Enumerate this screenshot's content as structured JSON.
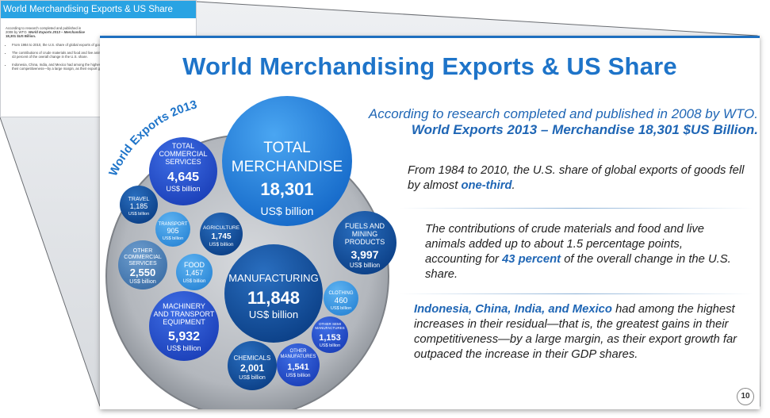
{
  "thumbnail": {
    "title": "World Merchandising Exports & US Share",
    "intro_line1": "According to research completed and published in",
    "intro_line2_a": "2008 by WTO. ",
    "intro_line2_b": "World Exports 2013 – Merchandise",
    "intro_line3": "18,301 $US Billion.",
    "bullets": [
      "From 1984 to 2010, the U.S. share of global exports of goods fell by almost one-third.",
      "The contributions of crude materials and food and live animals added up to about 1.5 percentage points, accounting for 43 percent of the overall change in the U.S. share.",
      "Indonesia, China, India, and Mexico had among the highest increases in their residual—that is, the greatest gains in their competitiveness—by a large margin, as their export growth far outpaced the increase in their GDP shares."
    ]
  },
  "slide": {
    "title": "World Merchandising Exports & US Share",
    "intro_line1": "According to research completed and published in 2008 by WTO.",
    "intro_line2": "World Exports 2013 – Merchandise  18,301 $US Billion.",
    "para1_a": "From 1984 to 2010, the U.S. share of global exports of goods fell by almost ",
    "para1_b": "one-third",
    "para1_c": ".",
    "para2_a": "The contributions of crude materials and food and live animals added up to about 1.5 percentage points, accounting for ",
    "para2_b": "43 percent",
    "para2_c": " of the overall change in the U.S. share.",
    "para3_a": "Indonesia, China, India, and Mexico",
    "para3_b": " had among the highest increases in their residual—that is, the greatest gains in their competitiveness—by a large margin, as their export growth far outpaced the increase in their GDP shares.",
    "page_number": "10"
  },
  "chart_data": {
    "type": "bubble",
    "title": "World Exports 2013",
    "unit": "US$ billion",
    "bubbles": [
      {
        "label": "TOTAL MERCHANDISE",
        "value": 18301,
        "display": "18,301"
      },
      {
        "label": "MANUFACTURING",
        "value": 11848,
        "display": "11,848"
      },
      {
        "label": "MACHINERY AND TRANSPORT EQUIPMENT",
        "value": 5932,
        "display": "5,932"
      },
      {
        "label": "TOTAL COMMERCIAL SERVICES",
        "value": 4645,
        "display": "4,645"
      },
      {
        "label": "FUELS AND MINING PRODUCTS",
        "value": 3997,
        "display": "3,997"
      },
      {
        "label": "OTHER COMMERCIAL SERVICES",
        "value": 2550,
        "display": "2,550"
      },
      {
        "label": "CHEMICALS",
        "value": 2001,
        "display": "2,001"
      },
      {
        "label": "AGRICULTURE",
        "value": 1745,
        "display": "1,745"
      },
      {
        "label": "OTHER MANUFATURES",
        "value": 1541,
        "display": "1,541"
      },
      {
        "label": "FOOD",
        "value": 1457,
        "display": "1,457"
      },
      {
        "label": "TRAVEL",
        "value": 1185,
        "display": "1,185"
      },
      {
        "label": "OTHER SEMI MANUFACTURES",
        "value": 1153,
        "display": "1,153"
      },
      {
        "label": "TRANSPORT",
        "value": 905,
        "display": "905"
      },
      {
        "label": "CLOTHING",
        "value": 460,
        "display": "460"
      }
    ]
  }
}
